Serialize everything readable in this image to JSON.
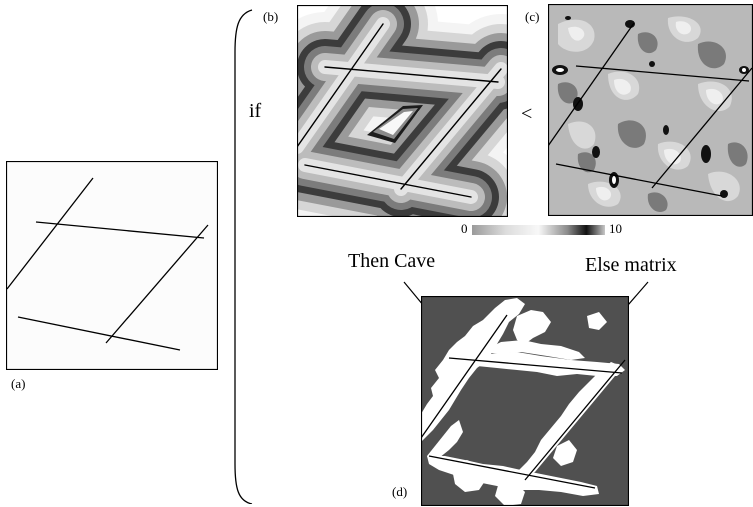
{
  "panels": {
    "a": {
      "label": "(a)"
    },
    "b": {
      "label": "(b)"
    },
    "c": {
      "label": "(c)"
    },
    "d": {
      "label": "(d)"
    }
  },
  "condition": {
    "if_label": "if",
    "comparator": "<"
  },
  "colorbar": {
    "min_label": "0",
    "max_label": "10"
  },
  "annotations": {
    "then_label": "Then Cave",
    "else_label": "Else matrix"
  },
  "colors": {
    "matrix": "#505050",
    "cave": "#ffffff",
    "line": "#000000",
    "bracket": "#000000"
  }
}
